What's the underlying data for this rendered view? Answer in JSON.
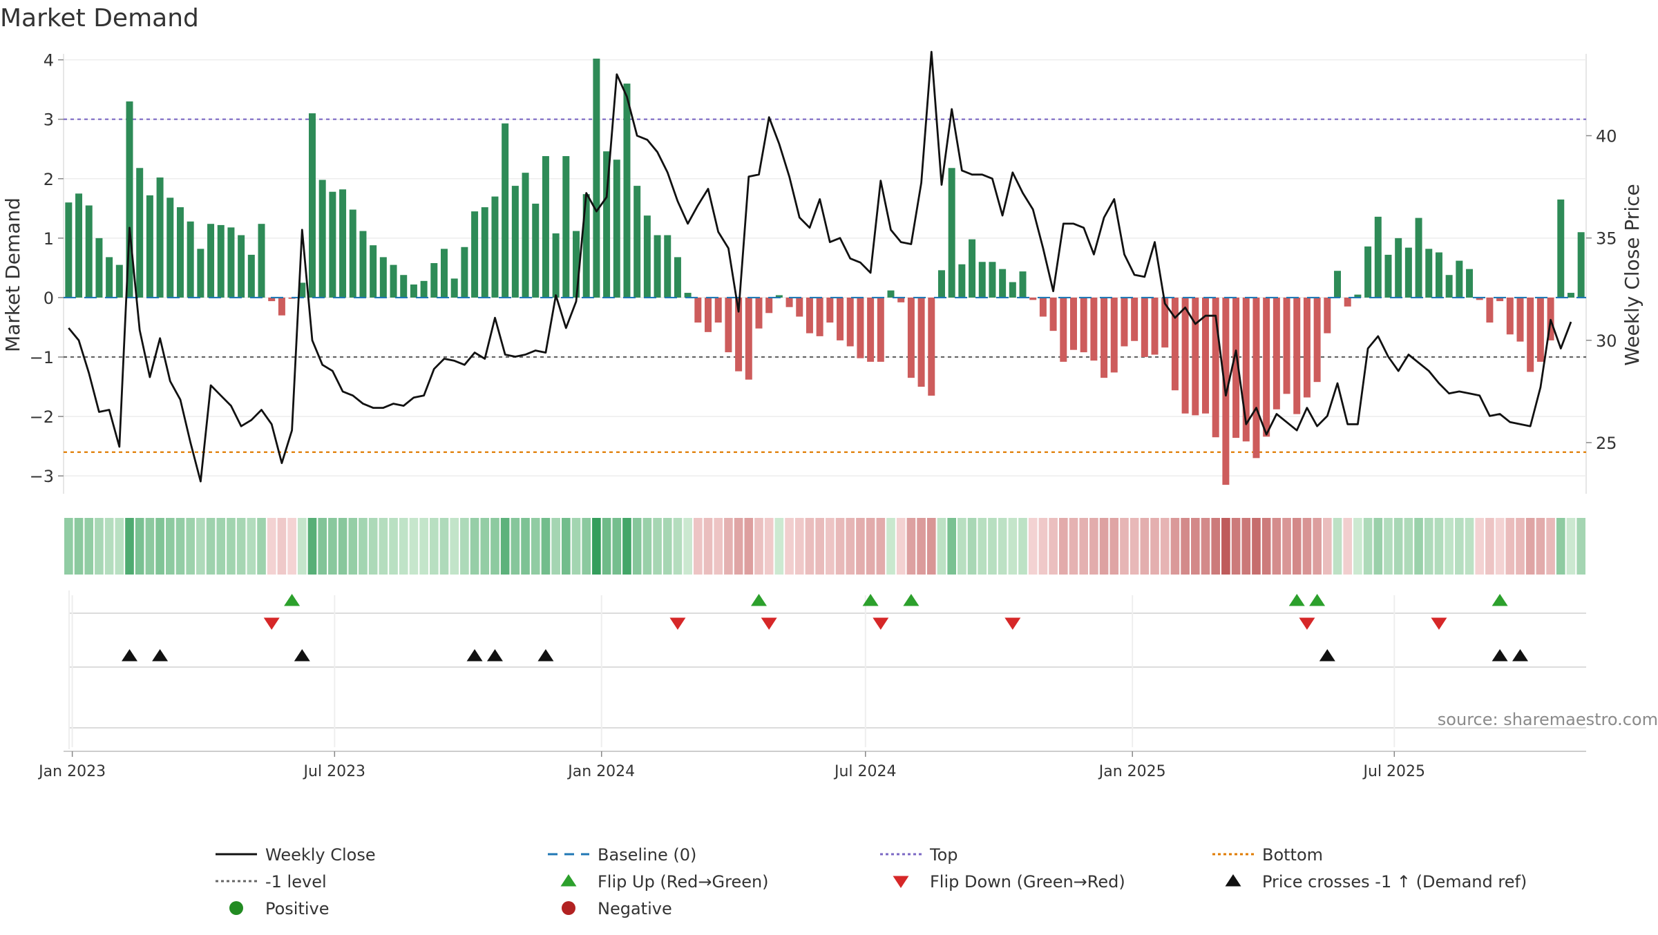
{
  "chart_data": {
    "type": "bar+line",
    "title": "Market Demand",
    "ylabel_left": "Market Demand",
    "ylabel_right": "Weekly Close Price",
    "ylim_left": [
      -3.3,
      4.1
    ],
    "ylim_right": [
      22.5,
      44.0
    ],
    "yticks_left": [
      4,
      3,
      2,
      1,
      0,
      -1,
      -2,
      -3
    ],
    "yticks_left_labels": [
      "4",
      "3",
      "2",
      "1",
      "0",
      "−1",
      "−2",
      "−3"
    ],
    "yticks_right": [
      40,
      35,
      30,
      25
    ],
    "yticks_right_labels": [
      "40",
      "35",
      "30",
      "25"
    ],
    "reference_lines": {
      "top": 3.0,
      "bottom": -2.6,
      "minus_one": -1.0,
      "baseline": 0
    },
    "x_date_start": "2022-12-26",
    "x_labels": [
      {
        "label": "Jan 2023",
        "week": 0.86
      },
      {
        "label": "Jul 2023",
        "week": 26.7
      },
      {
        "label": "Jan 2024",
        "week": 53.0
      },
      {
        "label": "Jul 2024",
        "week": 79.0
      },
      {
        "label": "Jan 2025",
        "week": 105.3
      },
      {
        "label": "Jul 2025",
        "week": 131.1
      }
    ],
    "demand": [
      1.6,
      1.75,
      1.55,
      1.0,
      0.68,
      0.55,
      3.3,
      2.18,
      1.72,
      2.02,
      1.68,
      1.52,
      1.28,
      0.82,
      1.24,
      1.22,
      1.18,
      1.05,
      0.72,
      1.24,
      -0.06,
      -0.3,
      -0.02,
      0.25,
      3.1,
      1.98,
      1.78,
      1.82,
      1.48,
      1.12,
      0.88,
      0.68,
      0.55,
      0.38,
      0.22,
      0.28,
      0.58,
      0.82,
      0.32,
      0.85,
      1.45,
      1.52,
      1.7,
      2.93,
      1.88,
      2.1,
      1.58,
      2.38,
      1.08,
      2.38,
      1.12,
      1.74,
      4.02,
      2.46,
      2.32,
      3.6,
      1.88,
      1.38,
      1.05,
      1.05,
      0.68,
      0.08,
      -0.42,
      -0.58,
      -0.42,
      -0.92,
      -1.24,
      -1.38,
      -0.52,
      -0.26,
      0.04,
      -0.16,
      -0.32,
      -0.6,
      -0.65,
      -0.42,
      -0.72,
      -0.82,
      -1.02,
      -1.08,
      -1.08,
      0.12,
      -0.08,
      -1.35,
      -1.5,
      -1.65,
      0.46,
      2.18,
      0.56,
      0.98,
      0.6,
      0.6,
      0.48,
      0.26,
      0.44,
      -0.04,
      -0.32,
      -0.56,
      -1.08,
      -0.88,
      -0.92,
      -1.06,
      -1.35,
      -1.26,
      -0.82,
      -0.73,
      -1.0,
      -0.96,
      -0.84,
      -1.56,
      -1.95,
      -1.98,
      -1.95,
      -2.35,
      -3.15,
      -2.36,
      -2.42,
      -2.7,
      -2.34,
      -1.88,
      -1.62,
      -1.96,
      -1.68,
      -1.42,
      -0.6,
      0.45,
      -0.15,
      0.05,
      0.86,
      1.36,
      0.72,
      1.0,
      0.84,
      1.34,
      0.82,
      0.76,
      0.38,
      0.62,
      0.48,
      -0.04,
      -0.42,
      -0.06,
      -0.62,
      -0.74,
      -1.25,
      -1.08,
      -0.72,
      1.65,
      0.08,
      1.1
    ],
    "close": [
      30.6,
      30.0,
      28.4,
      26.5,
      26.6,
      24.8,
      35.5,
      30.5,
      28.2,
      30.1,
      28.0,
      27.1,
      25.0,
      23.1,
      27.8,
      27.3,
      26.8,
      25.8,
      26.1,
      26.6,
      25.9,
      24.0,
      25.6,
      35.4,
      30.0,
      28.8,
      28.5,
      27.5,
      27.3,
      26.9,
      26.7,
      26.7,
      26.9,
      26.8,
      27.2,
      27.3,
      28.6,
      29.1,
      29.0,
      28.8,
      29.4,
      29.1,
      31.1,
      29.3,
      29.2,
      29.3,
      29.5,
      29.4,
      32.2,
      30.6,
      31.9,
      37.2,
      36.3,
      37.0,
      43.0,
      41.9,
      40.0,
      39.8,
      39.2,
      38.2,
      36.8,
      35.7,
      36.6,
      37.4,
      35.3,
      34.5,
      31.4,
      38.0,
      38.1,
      40.9,
      39.6,
      38.0,
      36.0,
      35.5,
      36.9,
      34.8,
      35.0,
      34.0,
      33.8,
      33.3,
      37.8,
      35.4,
      34.8,
      34.7,
      37.7,
      44.1,
      37.6,
      41.3,
      38.3,
      38.1,
      38.1,
      37.9,
      36.1,
      38.2,
      37.2,
      36.4,
      34.5,
      32.4,
      35.7,
      35.7,
      35.5,
      34.2,
      36.0,
      36.9,
      34.2,
      33.2,
      33.1,
      34.8,
      31.8,
      31.1,
      31.6,
      30.8,
      31.2,
      31.2,
      27.3,
      29.5,
      25.9,
      26.7,
      25.4,
      26.4,
      26.0,
      25.6,
      26.7,
      25.8,
      26.3,
      27.9,
      25.9,
      25.9,
      29.6,
      30.2,
      29.2,
      28.5,
      29.3,
      28.9,
      28.5,
      27.9,
      27.4,
      27.5,
      27.4,
      27.3,
      26.3,
      26.4,
      26.0,
      25.9,
      25.8,
      27.7,
      31.0,
      29.6,
      30.9
    ],
    "flip_up_weeks": [
      22,
      68,
      79,
      83,
      121,
      123,
      141
    ],
    "flip_down_weeks": [
      20,
      60,
      69,
      80,
      93,
      122,
      135
    ],
    "price_cross_weeks": [
      6,
      9,
      23,
      40,
      42,
      47,
      124,
      141,
      143
    ],
    "legend": [
      "Weekly Close",
      "Baseline (0)",
      "Top",
      "Bottom",
      "-1 level",
      "Flip Up (Red→Green)",
      "Flip Down (Green→Red)",
      "Price crosses -1 ↑ (Demand ref)",
      "Positive",
      "Negative"
    ],
    "source": "source: sharemaestro.com",
    "colors": {
      "positive": "#2e8b57",
      "negative": "#cd5c5c",
      "close": "#111111",
      "baseline": "#1f77b4",
      "top": "#7b68c4",
      "bottom": "#e07b00",
      "minus_one": "#666666",
      "flip_up": "#2ca02c",
      "flip_down": "#d62728",
      "cross": "#111111",
      "positive_dot": "#228b22",
      "negative_dot": "#b22222"
    }
  }
}
